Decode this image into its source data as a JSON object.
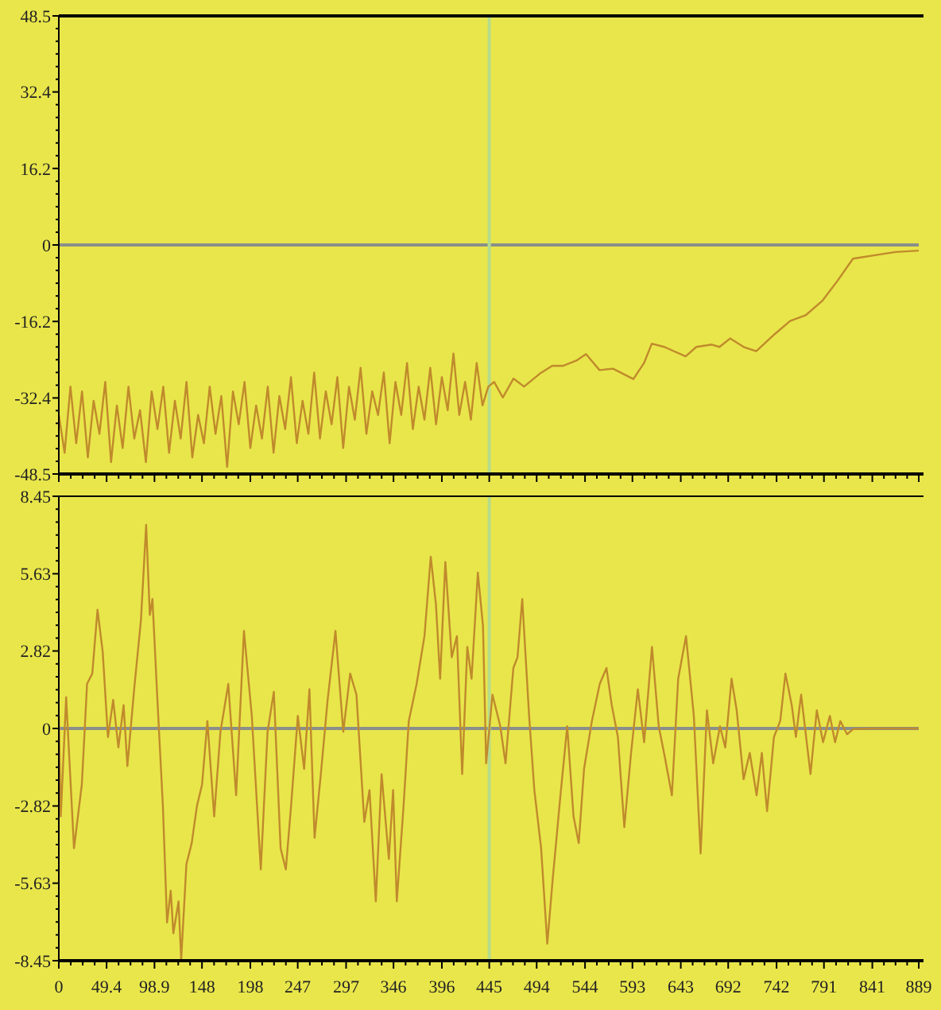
{
  "chart_data": [
    {
      "type": "line",
      "xlim": [
        0,
        889
      ],
      "ylim": [
        -48.5,
        48.5
      ],
      "yticks": [
        48.5,
        32.4,
        16.2,
        0,
        -16.2,
        -32.4,
        -48.5
      ],
      "xticks": [
        0,
        49.4,
        98.9,
        148,
        198,
        247,
        297,
        346,
        396,
        445,
        494,
        544,
        593,
        643,
        692,
        742,
        791,
        841,
        889
      ],
      "tick_labels": "y",
      "grid": false,
      "ref_lines": [
        {
          "axis": "y",
          "value": 0,
          "color": "#8a8f8a"
        },
        {
          "axis": "x",
          "value": 445,
          "color": "#b5dc8c"
        }
      ],
      "series": [
        {
          "color": "#c08a2c",
          "x": [
            0,
            6,
            12,
            18,
            24,
            30,
            36,
            42,
            48,
            54,
            60,
            66,
            72,
            78,
            84,
            90,
            96,
            102,
            108,
            114,
            120,
            126,
            132,
            138,
            144,
            150,
            156,
            162,
            168,
            174,
            180,
            186,
            192,
            198,
            204,
            210,
            216,
            222,
            228,
            234,
            240,
            246,
            252,
            258,
            264,
            270,
            276,
            282,
            288,
            294,
            300,
            306,
            312,
            318,
            324,
            330,
            336,
            342,
            348,
            354,
            360,
            366,
            372,
            378,
            384,
            390,
            396,
            402,
            408,
            414,
            420,
            426,
            432,
            438,
            444,
            450,
            459,
            470,
            481,
            497,
            510,
            521,
            535,
            545,
            559,
            573,
            594,
            605,
            613,
            626,
            648,
            659,
            675,
            683,
            694,
            708,
            721,
            740,
            756,
            772,
            789,
            805,
            821,
            849,
            865,
            889
          ],
          "values": [
            -36,
            -44,
            -30,
            -42,
            -31,
            -45,
            -33,
            -40,
            -29,
            -46,
            -34,
            -43,
            -30,
            -41,
            -35,
            -46,
            -31,
            -39,
            -30,
            -44,
            -33,
            -41,
            -29,
            -45,
            -36,
            -42,
            -30,
            -40,
            -32,
            -47,
            -31,
            -38,
            -29,
            -43,
            -34,
            -41,
            -30,
            -44,
            -32,
            -39,
            -28,
            -42,
            -33,
            -40,
            -27,
            -41,
            -31,
            -38,
            -28,
            -43,
            -30,
            -37,
            -26,
            -40,
            -31,
            -36,
            -27,
            -42,
            -29,
            -36,
            -25,
            -39,
            -30,
            -37,
            -26,
            -38,
            -28,
            -35,
            -23,
            -36,
            -29,
            -37,
            -25,
            -34,
            -30,
            -29,
            -32.3,
            -28.3,
            -30,
            -27.3,
            -25.6,
            -25.6,
            -24.5,
            -23.1,
            -26.5,
            -26.2,
            -28.4,
            -25,
            -20.9,
            -21.6,
            -23.6,
            -21.6,
            -21.1,
            -21.6,
            -19.8,
            -21.6,
            -22.5,
            -18.9,
            -16.1,
            -14.9,
            -11.9,
            -7.6,
            -2.9,
            -2,
            -1.5,
            -1.2
          ]
        }
      ]
    },
    {
      "type": "line",
      "xlim": [
        0,
        889
      ],
      "ylim": [
        -8.45,
        8.45
      ],
      "yticks": [
        8.45,
        5.63,
        2.82,
        0,
        -2.82,
        -5.63,
        -8.45
      ],
      "xticks": [
        0,
        49.4,
        98.9,
        148,
        198,
        247,
        297,
        346,
        396,
        445,
        494,
        544,
        593,
        643,
        692,
        742,
        791,
        841,
        889
      ],
      "grid": false,
      "ref_lines": [
        {
          "axis": "y",
          "value": 0,
          "color": "#8a8f8a"
        },
        {
          "axis": "x",
          "value": 445,
          "color": "#b5dc8c"
        }
      ],
      "series": [
        {
          "color": "#c08a2c",
          "x": [
            0,
            2,
            7.6,
            15.7,
            23.8,
            29.2,
            34.6,
            40,
            45.4,
            50.8,
            56.2,
            61.6,
            67,
            70.9,
            77.9,
            84.9,
            90.3,
            94.1,
            96.8,
            102.2,
            107.6,
            111.9,
            115.7,
            118.4,
            123.8,
            126.5,
            131.9,
            137.4,
            142.8,
            148.1,
            153.6,
            160.6,
            167.1,
            175.2,
            183.3,
            191.4,
            199.5,
            208.8,
            215.8,
            222.3,
            229.3,
            234.7,
            240.1,
            247.1,
            253.6,
            259.1,
            264.4,
            270.9,
            277.9,
            286,
            294.1,
            301.2,
            307.7,
            315.8,
            321.2,
            327.7,
            333.7,
            341.2,
            345.6,
            349.4,
            356.4,
            361.8,
            369.9,
            378,
            384.5,
            389.9,
            394.2,
            399.6,
            406.2,
            411.6,
            417,
            422.3,
            426.7,
            433.2,
            438.5,
            441.8,
            448.3,
            456.4,
            461.8,
            469.9,
            474.2,
            479.1,
            486.2,
            491.6,
            498.6,
            505,
            510.5,
            518.6,
            525.6,
            532.1,
            537.5,
            543,
            551.1,
            559.2,
            566.2,
            571.6,
            578,
            584.6,
            591.6,
            598.6,
            605.1,
            613.2,
            620.2,
            626.7,
            633.8,
            640.3,
            648.4,
            656.5,
            663.5,
            670,
            676.5,
            683.5,
            689,
            695.5,
            700.8,
            707.9,
            714.3,
            721.4,
            726.8,
            732.2,
            739.3,
            745.8,
            751.2,
            757.7,
            762,
            767.4,
            777.1,
            783.6,
            790.1,
            797.1,
            802.5,
            807.9,
            814.9,
            821.4,
            841,
            889
          ],
          "values": [
            0.46,
            -3.2,
            1.14,
            -4.36,
            -2.04,
            1.62,
            2.0,
            4.32,
            2.78,
            -0.31,
            1.04,
            -0.69,
            0.85,
            -1.37,
            1.43,
            3.94,
            7.41,
            4.13,
            4.71,
            0.85,
            -2.82,
            -7.06,
            -5.9,
            -7.45,
            -6.29,
            -8.41,
            -4.94,
            -4.17,
            -2.82,
            -2.04,
            0.27,
            -3.2,
            -0.12,
            1.62,
            -2.43,
            3.55,
            0.46,
            -5.13,
            -0.12,
            1.33,
            -4.36,
            -5.13,
            -2.82,
            0.46,
            -1.47,
            1.43,
            -3.98,
            -1.66,
            1.04,
            3.55,
            -0.12,
            2.0,
            1.23,
            -3.4,
            -2.24,
            -6.29,
            -1.66,
            -4.75,
            -2.24,
            -6.29,
            -2.82,
            0.27,
            1.62,
            3.36,
            6.25,
            4.51,
            1.81,
            6.06,
            2.59,
            3.36,
            -1.66,
            2.97,
            1.81,
            5.67,
            3.74,
            -1.27,
            1.23,
            0.08,
            -1.27,
            2.2,
            2.59,
            4.71,
            0.46,
            -2.24,
            -4.36,
            -7.83,
            -5.52,
            -2.43,
            0.08,
            -3.2,
            -4.17,
            -1.47,
            0.27,
            1.62,
            2.2,
            0.85,
            -0.31,
            -3.59,
            -0.89,
            1.43,
            -0.5,
            2.97,
            0.08,
            -1.08,
            -2.43,
            1.81,
            3.36,
            0.46,
            -4.55,
            0.66,
            -1.27,
            0.08,
            -0.69,
            1.81,
            0.66,
            -1.85,
            -0.89,
            -2.43,
            -0.89,
            -3.01,
            -0.31,
            0.27,
            2.0,
            0.85,
            -0.31,
            1.23,
            -1.66,
            0.66,
            -0.5,
            0.46,
            -0.5,
            0.27,
            -0.21,
            -0.02,
            0,
            0
          ]
        }
      ]
    }
  ]
}
